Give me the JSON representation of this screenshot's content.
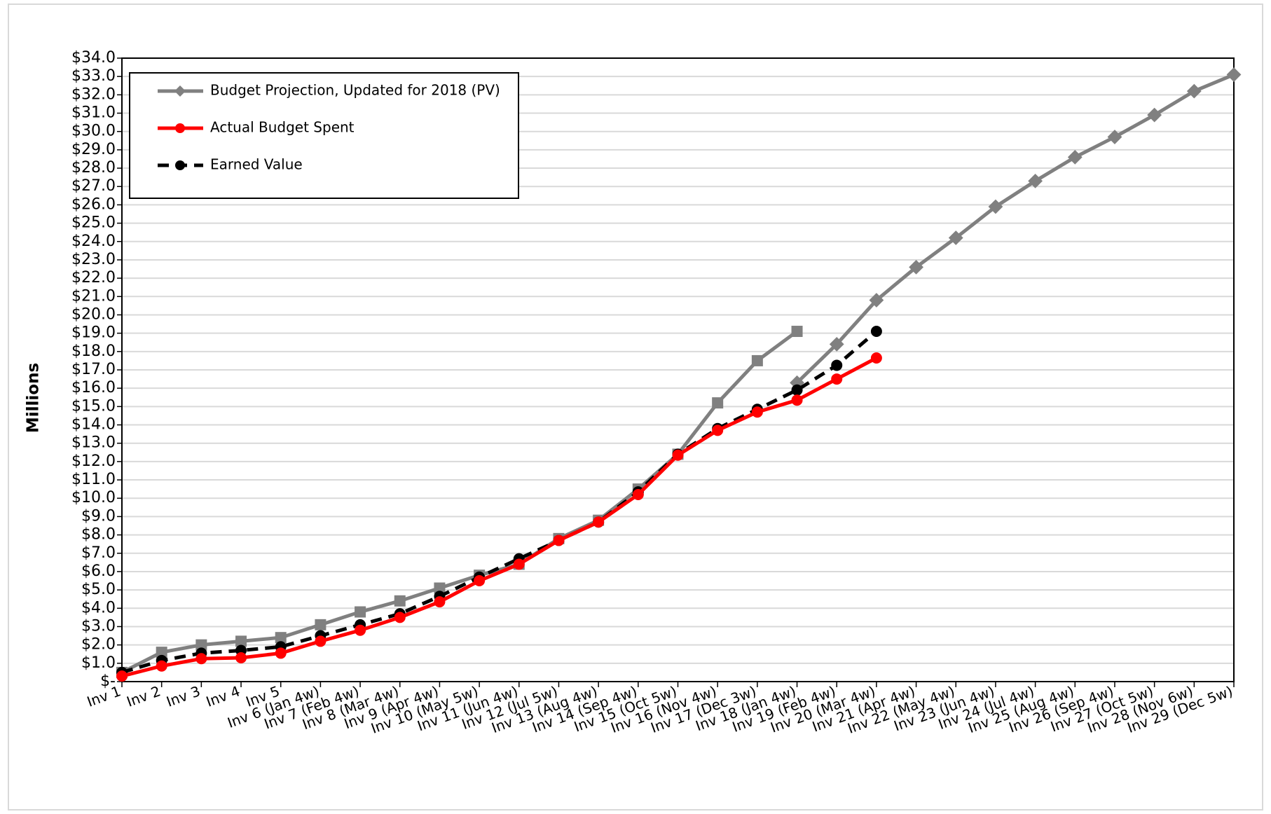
{
  "chart_data": {
    "type": "line",
    "y_label": "Millions",
    "categories": [
      "Inv 1",
      "Inv 2",
      "Inv 3",
      "Inv 4",
      "Inv 5",
      "Inv 6 (Jan 4w)",
      "Inv 7 (Feb 4w)",
      "Inv 8 (Mar 4w)",
      "Inv 9 (Apr 4w)",
      "Inv 10 (May 5w)",
      "Inv 11 (Jun 4w)",
      "Inv 12 (Jul 5w)",
      "Inv 13 (Aug 4w)",
      "Inv 14 (Sep 4w)",
      "Inv 15 (Oct 5w)",
      "Inv 16 (Nov 4w)",
      "Inv 17 (Dec 3w)",
      "Inv 18 (Jan 4w)",
      "Inv 19 (Feb 4w)",
      "Inv 20 (Mar 4w)",
      "Inv 21 (Apr 4w)",
      "Inv  22 (May 4w)",
      "Inv 23 (Jun 4w)",
      "Inv 24 (Jul 4w)",
      "Inv 25 (Aug 4w)",
      "Inv 26 (Sep 4w)",
      "Inv  27 (Oct 5w)",
      "Inv  28 (Nov 6w)",
      "Inv  29 (Dec 5w)"
    ],
    "series": [
      {
        "name": "Budget Projection, Updated for 2018 (PV)",
        "color": "#808080",
        "marker": "diamond",
        "dashed": false,
        "values": [
          null,
          null,
          null,
          null,
          null,
          null,
          null,
          null,
          null,
          null,
          null,
          null,
          null,
          null,
          null,
          null,
          null,
          16.3,
          18.4,
          20.8,
          22.6,
          24.2,
          25.9,
          27.3,
          28.6,
          29.7,
          30.9,
          32.2,
          33.1
        ]
      },
      {
        "name": "Actual Budget Spent",
        "color": "#ff0000",
        "marker": "circle",
        "dashed": false,
        "values": [
          0.3,
          0.85,
          1.25,
          1.3,
          1.55,
          2.2,
          2.8,
          3.5,
          4.35,
          5.5,
          6.4,
          7.7,
          8.7,
          10.2,
          12.35,
          13.7,
          14.7,
          15.35,
          16.5,
          17.65,
          null,
          null,
          null,
          null,
          null,
          null,
          null,
          null,
          null
        ]
      },
      {
        "name": "Earned Value",
        "color": "#000000",
        "marker": "circle",
        "dashed": true,
        "values": [
          0.5,
          1.15,
          1.55,
          1.7,
          1.9,
          2.5,
          3.1,
          3.7,
          4.65,
          5.7,
          6.7,
          7.7,
          8.7,
          10.35,
          12.4,
          13.8,
          14.85,
          15.9,
          17.25,
          19.1,
          null,
          null,
          null,
          null,
          null,
          null,
          null,
          null,
          null
        ]
      },
      {
        "color": "#808080",
        "marker": "square",
        "dashed": false,
        "values": [
          0.5,
          1.6,
          2.0,
          2.2,
          2.4,
          3.1,
          3.8,
          4.4,
          5.1,
          5.8,
          6.4,
          7.8,
          8.8,
          10.5,
          12.4,
          15.2,
          17.5,
          19.1,
          null,
          null,
          null,
          null,
          null,
          null,
          null,
          null,
          null,
          null,
          null
        ]
      }
    ],
    "ylim": [
      0,
      34
    ],
    "yticks": [
      {
        "value": 0,
        "label": "$-"
      },
      {
        "value": 1,
        "label": "$1.0"
      },
      {
        "value": 2,
        "label": "$2.0"
      },
      {
        "value": 3,
        "label": "$3.0"
      },
      {
        "value": 4,
        "label": "$4.0"
      },
      {
        "value": 5,
        "label": "$5.0"
      },
      {
        "value": 6,
        "label": "$6.0"
      },
      {
        "value": 7,
        "label": "$7.0"
      },
      {
        "value": 8,
        "label": "$8.0"
      },
      {
        "value": 9,
        "label": "$9.0"
      },
      {
        "value": 10,
        "label": "$10.0"
      },
      {
        "value": 11,
        "label": "$11.0"
      },
      {
        "value": 12,
        "label": "$12.0"
      },
      {
        "value": 13,
        "label": "$13.0"
      },
      {
        "value": 14,
        "label": "$14.0"
      },
      {
        "value": 15,
        "label": "$15.0"
      },
      {
        "value": 16,
        "label": "$16.0"
      },
      {
        "value": 17,
        "label": "$17.0"
      },
      {
        "value": 18,
        "label": "$18.0"
      },
      {
        "value": 19,
        "label": "$19.0"
      },
      {
        "value": 20,
        "label": "$20.0"
      },
      {
        "value": 21,
        "label": "$21.0"
      },
      {
        "value": 22,
        "label": "$22.0"
      },
      {
        "value": 23,
        "label": "$23.0"
      },
      {
        "value": 24,
        "label": "$24.0"
      },
      {
        "value": 25,
        "label": "$25.0"
      },
      {
        "value": 26,
        "label": "$26.0"
      },
      {
        "value": 27,
        "label": "$27.0"
      },
      {
        "value": 28,
        "label": "$28.0"
      },
      {
        "value": 29,
        "label": "$29.0"
      },
      {
        "value": 30,
        "label": "$30.0"
      },
      {
        "value": 31,
        "label": "$31.0"
      },
      {
        "value": 32,
        "label": "$32.0"
      },
      {
        "value": 33,
        "label": "$33.0"
      },
      {
        "value": 34,
        "label": "$34.0"
      }
    ],
    "grid": true,
    "legend": "top-left"
  }
}
